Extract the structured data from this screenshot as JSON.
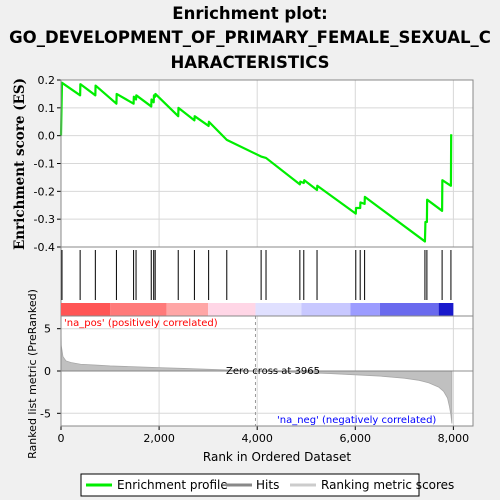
{
  "title": {
    "line1": "Enrichment plot:",
    "line2": "GO_DEVELOPMENT_OF_PRIMARY_FEMALE_SEXUAL_C",
    "line3": "HARACTERISTICS"
  },
  "colors": {
    "enrichment": "#00ee00",
    "hits": "#000000",
    "metric_fill": "#c0c0c0",
    "pos_label": "#ff0000",
    "neg_label": "#0000ff",
    "grid": "#d8d8d8",
    "bg": "#f0f0f0"
  },
  "chart_data": {
    "type": "line",
    "top_panel": {
      "ylabel": "Enrichment score (ES)",
      "ylim": [
        -0.4,
        0.2
      ],
      "yticks": [
        "0.2",
        "0.1",
        "0.0",
        "-0.1",
        "-0.2",
        "-0.3",
        "-0.4"
      ],
      "grid": true,
      "series": [
        {
          "name": "Enrichment profile",
          "x": [
            0,
            20,
            390,
            395,
            700,
            705,
            1130,
            1135,
            1480,
            1485,
            1530,
            1535,
            1840,
            1845,
            1890,
            1895,
            1920,
            1925,
            2390,
            2395,
            2720,
            2725,
            3010,
            3015,
            3380,
            4080,
            4180,
            4870,
            4880,
            4950,
            4960,
            5220,
            5225,
            6010,
            6015,
            6100,
            6105,
            6190,
            6195,
            7420,
            7430,
            7460,
            7465,
            7770,
            7775,
            7950,
            7955
          ],
          "y": [
            0.0,
            0.19,
            0.145,
            0.185,
            0.145,
            0.18,
            0.115,
            0.15,
            0.115,
            0.14,
            0.13,
            0.145,
            0.105,
            0.13,
            0.12,
            0.145,
            0.14,
            0.15,
            0.07,
            0.1,
            0.055,
            0.07,
            0.035,
            0.05,
            -0.015,
            -0.075,
            -0.08,
            -0.175,
            -0.165,
            -0.17,
            -0.16,
            -0.195,
            -0.18,
            -0.28,
            -0.26,
            -0.26,
            -0.24,
            -0.245,
            -0.22,
            -0.38,
            -0.31,
            -0.31,
            -0.23,
            -0.27,
            -0.16,
            -0.18,
            0.005
          ]
        }
      ]
    },
    "hits": {
      "name": "Hits",
      "positions": [
        20,
        390,
        700,
        1130,
        1480,
        1530,
        1840,
        1890,
        1920,
        2390,
        2720,
        3010,
        3380,
        4080,
        4180,
        4870,
        4950,
        5220,
        6010,
        6100,
        6190,
        7420,
        7460,
        7770,
        7950
      ]
    },
    "ranking_bar": {
      "segments": [
        {
          "from": 0,
          "to": 1000,
          "color": "#ff5555"
        },
        {
          "from": 1000,
          "to": 2150,
          "color": "#ff7a7a"
        },
        {
          "from": 2150,
          "to": 3000,
          "color": "#ffa6a6"
        },
        {
          "from": 3000,
          "to": 3965,
          "color": "#ffd6e6"
        },
        {
          "from": 3965,
          "to": 4900,
          "color": "#e0e0ff"
        },
        {
          "from": 4900,
          "to": 5900,
          "color": "#c8c8ff"
        },
        {
          "from": 5900,
          "to": 6500,
          "color": "#9c9cff"
        },
        {
          "from": 6500,
          "to": 7700,
          "color": "#6a6aee"
        },
        {
          "from": 7700,
          "to": 8000,
          "color": "#1a1acc"
        }
      ],
      "pos_label": "'na_pos' (positively correlated)",
      "neg_label": "'na_neg' (negatively correlated)"
    },
    "bottom_panel": {
      "ylabel": "Ranked list metric (PreRanked)",
      "xlabel": "Rank in Ordered Dataset",
      "ylim": [
        -6.5,
        6.5
      ],
      "yticks": [
        "5",
        "0",
        "-5"
      ],
      "xlim": [
        0,
        8400
      ],
      "xticks": [
        "0",
        "2,000",
        "4,000",
        "6,000",
        "8,000"
      ],
      "zero_cross": 3965,
      "zero_cross_label": "Zero cross at 3965",
      "series": [
        {
          "name": "Ranking metric scores",
          "x": [
            0,
            5,
            40,
            100,
            200,
            400,
            700,
            1000,
            1500,
            2000,
            2500,
            3000,
            3500,
            3965,
            4500,
            5000,
            5500,
            6000,
            6500,
            7000,
            7300,
            7500,
            7700,
            7800,
            7880,
            7920,
            7950,
            7965,
            7970
          ],
          "y": [
            5.0,
            3.0,
            1.7,
            1.2,
            1.0,
            0.8,
            0.7,
            0.6,
            0.5,
            0.4,
            0.3,
            0.2,
            0.1,
            0.0,
            -0.1,
            -0.2,
            -0.3,
            -0.45,
            -0.6,
            -0.85,
            -1.1,
            -1.4,
            -1.9,
            -2.4,
            -3.2,
            -4.2,
            -5.2,
            -6.0,
            -6.2
          ]
        }
      ]
    }
  },
  "legend": {
    "items": [
      {
        "label": "Enrichment profile"
      },
      {
        "label": "Hits"
      },
      {
        "label": "Ranking metric scores"
      }
    ]
  }
}
